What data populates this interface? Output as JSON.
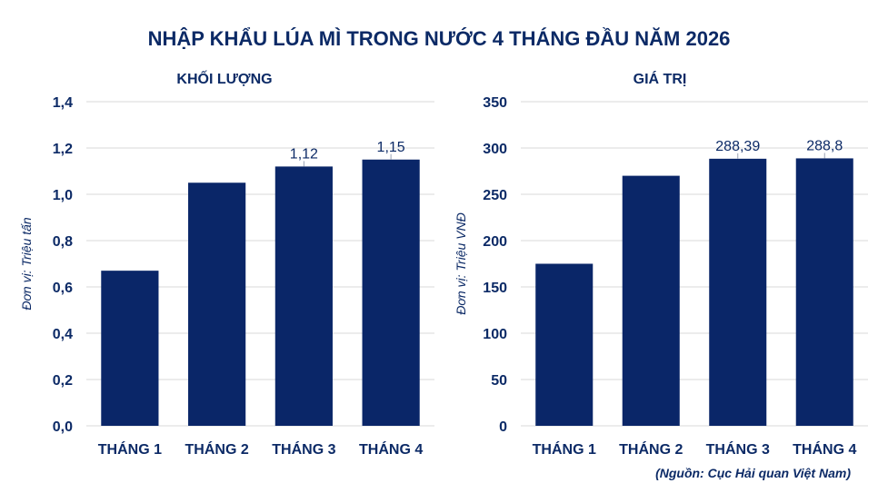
{
  "page": {
    "title": "NHẬP KHẨU LÚA MÌ TRONG NƯỚC 4 THÁNG ĐẦU NĂM 2026",
    "source": "(Nguồn: Cục Hải quan Việt Nam)"
  },
  "colors": {
    "bar": "#0a2668",
    "grid": "#d9d9d9",
    "text": "#0c2a66"
  },
  "chart_data": [
    {
      "type": "bar",
      "title": "KHỐI LƯỢNG",
      "ylabel": "Đơn vị: Triệu tấn",
      "xlabel": "",
      "categories": [
        "THÁNG 1",
        "THÁNG 2",
        "THÁNG 3",
        "THÁNG 4"
      ],
      "values": [
        0.67,
        1.05,
        1.12,
        1.15
      ],
      "data_labels": [
        "",
        "",
        "1,12",
        "1,15"
      ],
      "yticks": [
        "0,0",
        "0,2",
        "0,4",
        "0,6",
        "0,8",
        "1,0",
        "1,2",
        "1,4"
      ],
      "ylim": [
        0,
        1.4
      ],
      "grid": true
    },
    {
      "type": "bar",
      "title": "GIÁ TRỊ",
      "ylabel": "Đơn vị: Triệu VNĐ",
      "xlabel": "",
      "categories": [
        "THÁNG 1",
        "THÁNG 2",
        "THÁNG 3",
        "THÁNG 4"
      ],
      "values": [
        175,
        270,
        288.39,
        288.8
      ],
      "data_labels": [
        "",
        "",
        "288,39",
        "288,8"
      ],
      "yticks": [
        "0",
        "50",
        "100",
        "150",
        "200",
        "250",
        "300",
        "350"
      ],
      "ylim": [
        0,
        350
      ],
      "grid": true
    }
  ]
}
